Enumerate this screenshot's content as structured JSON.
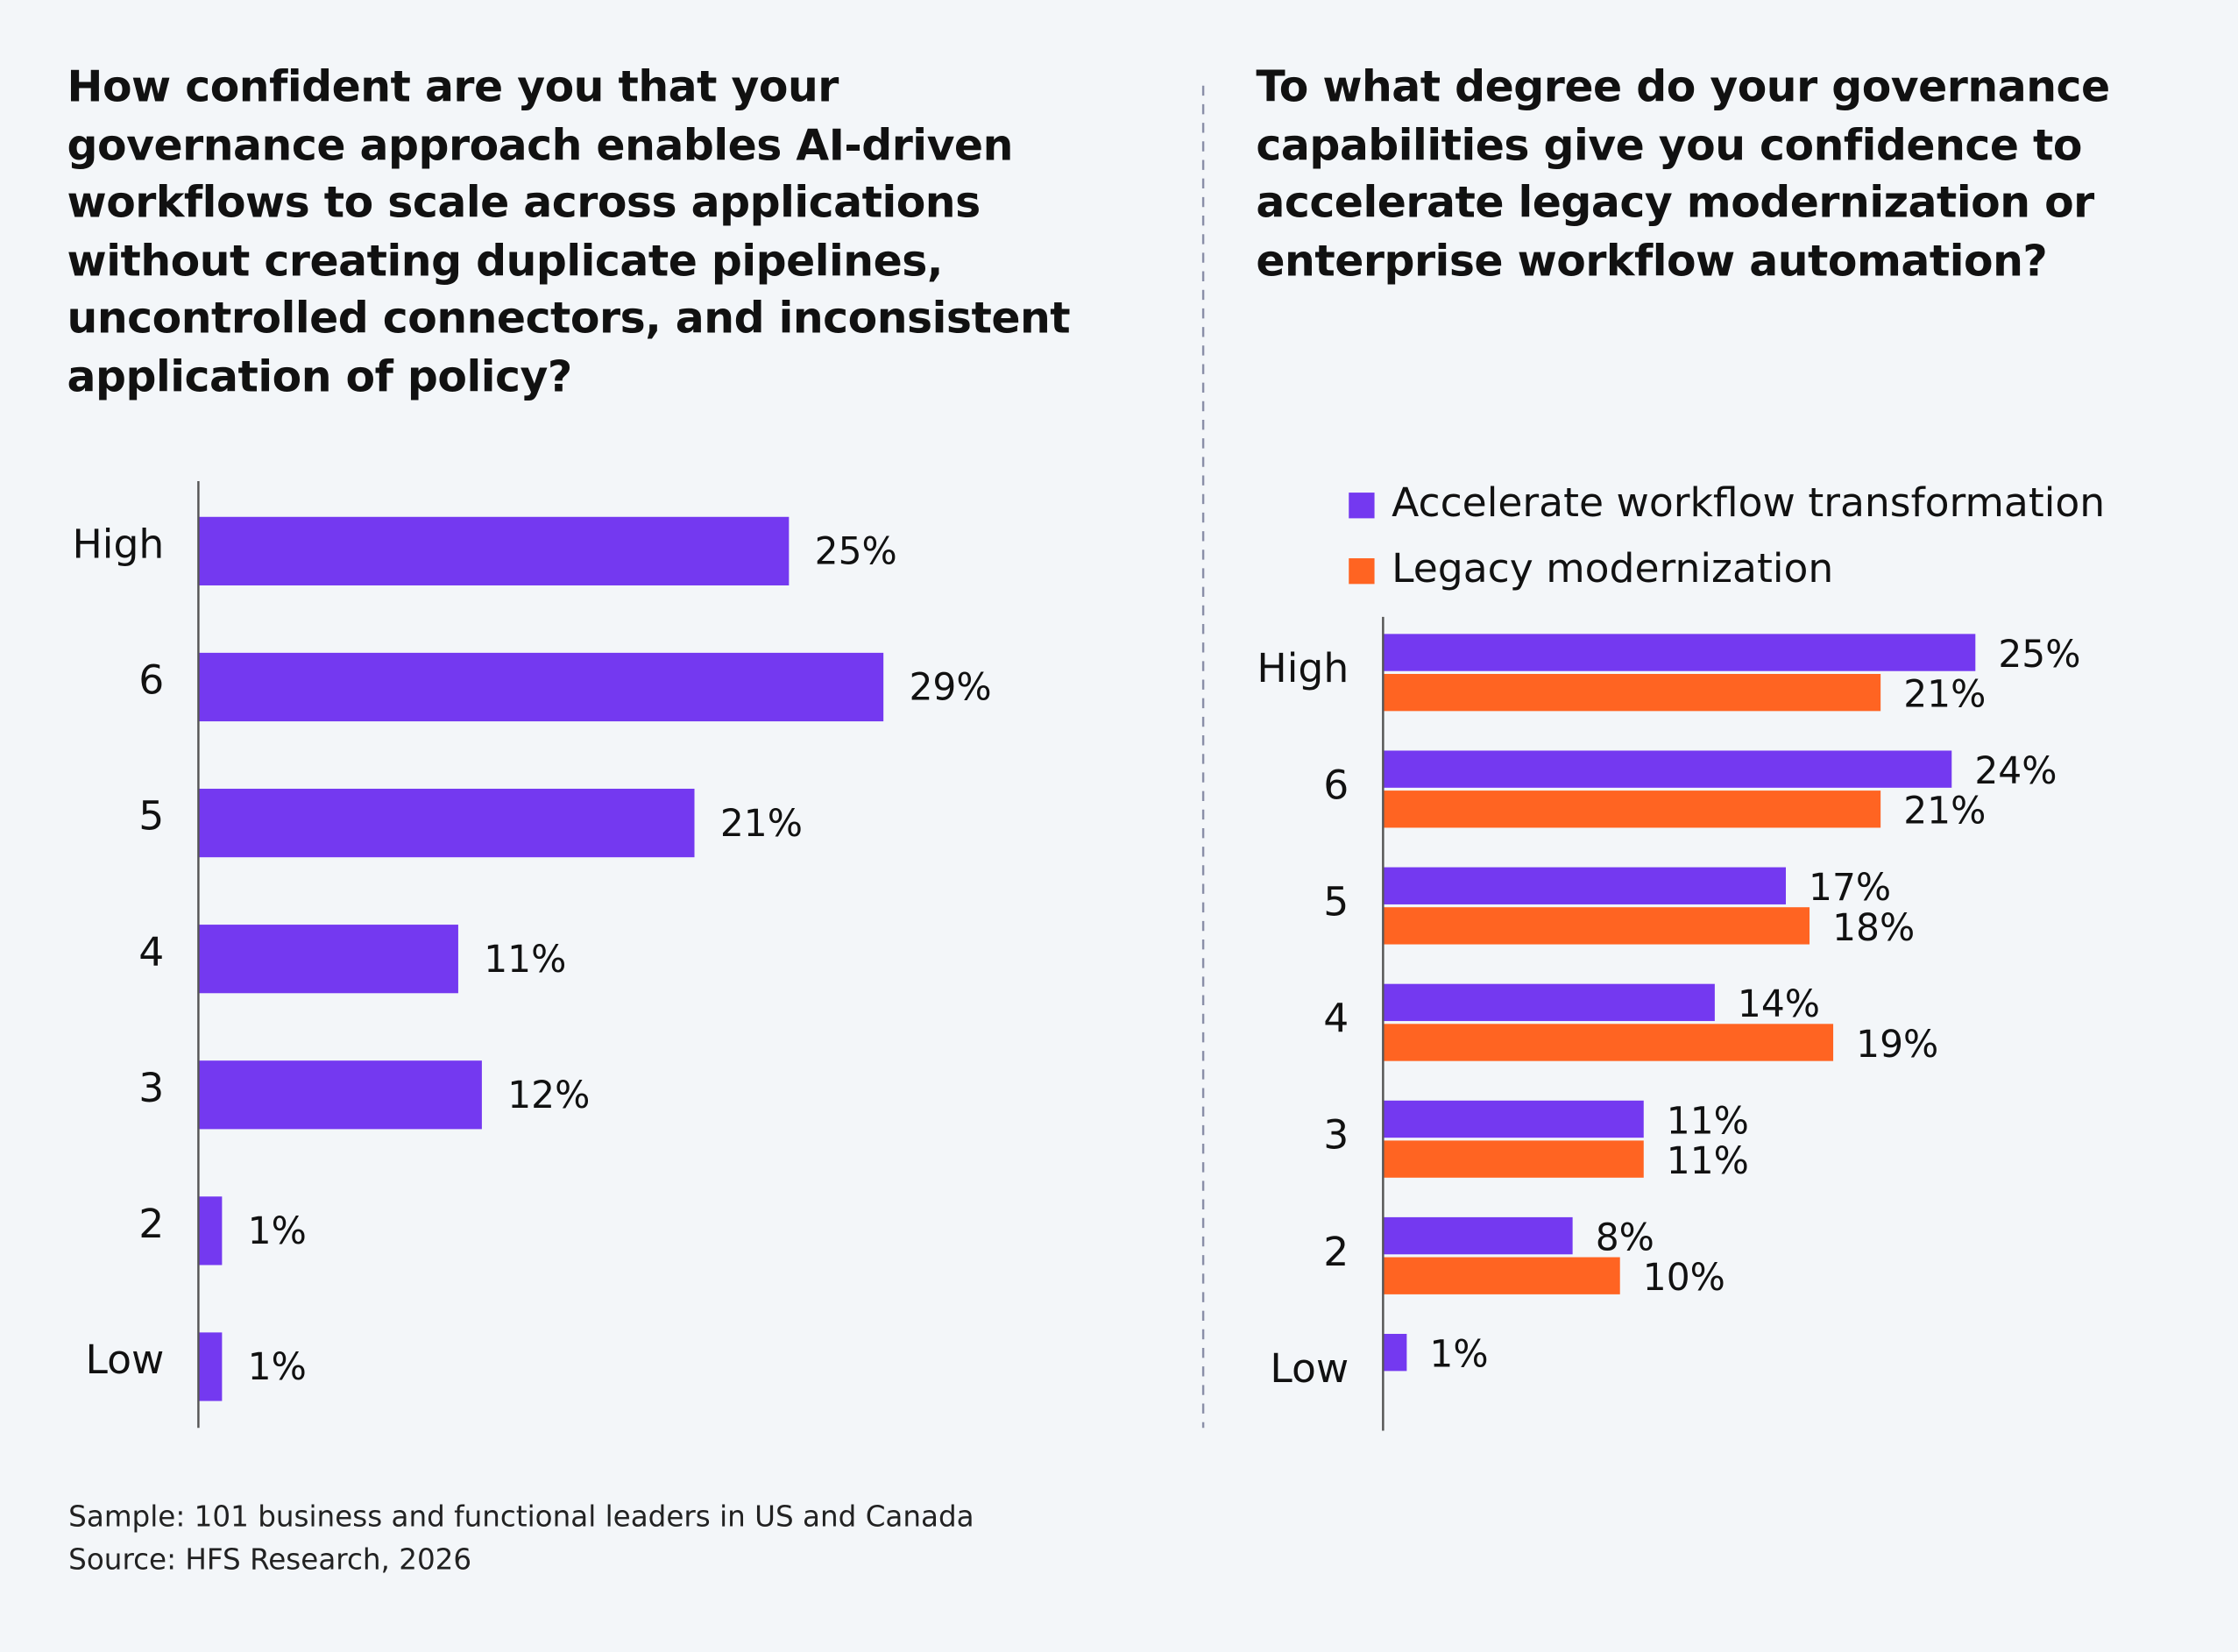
{
  "chart_data": [
    {
      "type": "bar",
      "orientation": "horizontal",
      "title": "How confident are you that your governance approach enables AI-driven workflows to scale across applications without creating duplicate pipelines, uncontrolled connectors, and inconsistent application of policy?",
      "categories": [
        "High",
        "6",
        "5",
        "4",
        "3",
        "2",
        "Low"
      ],
      "values": [
        25,
        29,
        21,
        11,
        12,
        1,
        1
      ],
      "value_labels": [
        "25%",
        "29%",
        "21%",
        "11%",
        "12%",
        "1%",
        "1%"
      ],
      "color": "#7439f0",
      "xlim": [
        0,
        40
      ]
    },
    {
      "type": "grouped_bar",
      "orientation": "horizontal",
      "title": "To what degree do your governance capabilities give you confidence to accelerate legacy modernization or enterprise workflow automation?",
      "categories": [
        "High",
        "6",
        "5",
        "4",
        "3",
        "2",
        "Low"
      ],
      "series": [
        {
          "name": "Accelerate workflow transformation",
          "color": "#7439f0",
          "values": [
            25,
            24,
            17,
            14,
            11,
            8,
            1
          ],
          "value_labels": [
            "25%",
            "24%",
            "17%",
            "14%",
            "11%",
            "8%",
            "1%"
          ]
        },
        {
          "name": "Legacy modernization",
          "color": "#ff6422",
          "values": [
            21,
            21,
            18,
            19,
            11,
            10,
            null
          ],
          "value_labels": [
            "21%",
            "21%",
            "18%",
            "19%",
            "11%",
            "10%",
            null
          ]
        }
      ],
      "xlim": [
        0,
        35
      ],
      "legend": "top"
    }
  ],
  "footer": [
    "Sample: 101 business and functional leaders in US and Canada",
    "Source: HFS Research, 2026"
  ]
}
